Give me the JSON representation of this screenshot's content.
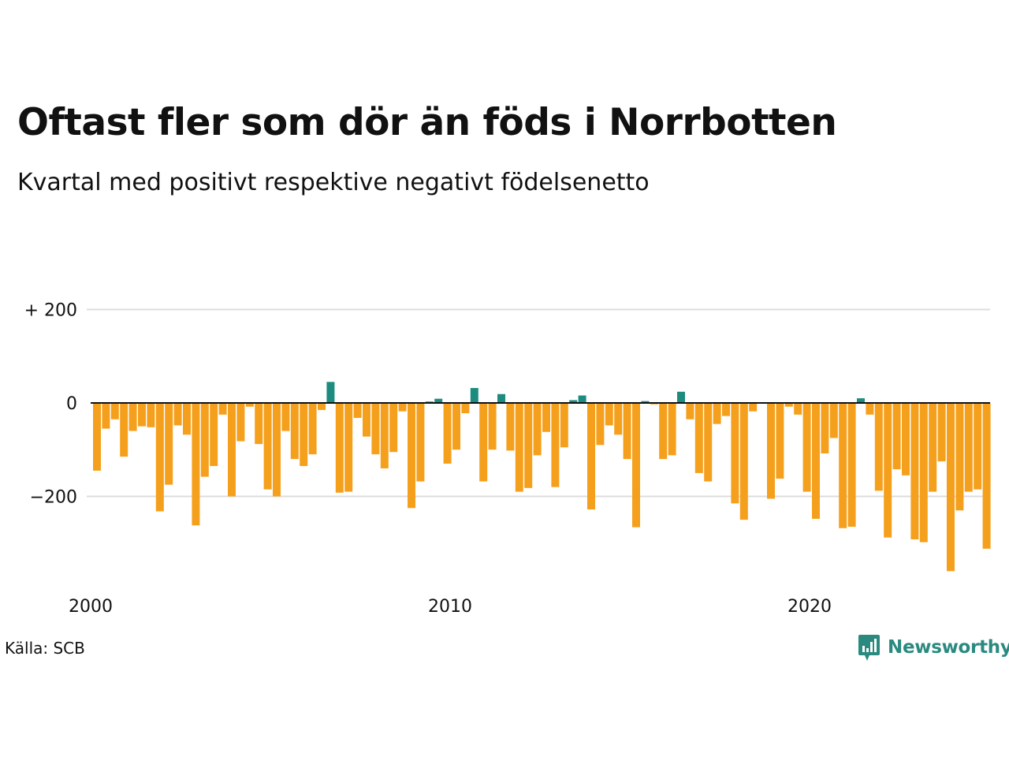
{
  "header": {
    "title": "Oftast fler som dör än föds i Norrbotten",
    "subtitle": "Kvartal med positivt respektive negativt födelsenetto"
  },
  "footer": {
    "source": "Källa: SCB",
    "brand": "Newsworthy"
  },
  "colors": {
    "negative": "#f5a01d",
    "positive": "#1d8c7f",
    "grid": "#dddddd",
    "zero_line": "#111111"
  },
  "chart_data": {
    "type": "bar",
    "x_start": "2000-Q1",
    "interval": "quarter",
    "y_ticks": [
      {
        "value": 200,
        "label": "+ 200"
      },
      {
        "value": 0,
        "label": "0"
      },
      {
        "value": -200,
        "label": "−200"
      }
    ],
    "x_ticks": [
      "2000",
      "2010",
      "2020"
    ],
    "ylim": [
      -380,
      200
    ],
    "values": [
      -145,
      -55,
      -35,
      -115,
      -60,
      -50,
      -52,
      -232,
      -175,
      -48,
      -68,
      -262,
      -158,
      -135,
      -25,
      -200,
      -82,
      -8,
      -88,
      -185,
      -200,
      -60,
      -120,
      -135,
      -110,
      -15,
      45,
      -192,
      -190,
      -32,
      -72,
      -110,
      -140,
      -105,
      -18,
      -225,
      -168,
      3,
      9,
      -130,
      -100,
      -22,
      32,
      -168,
      -100,
      19,
      -102,
      -190,
      -182,
      -112,
      -62,
      -180,
      -95,
      6,
      16,
      -228,
      -90,
      -48,
      -68,
      -120,
      -266,
      4,
      -3,
      -120,
      -112,
      24,
      -35,
      -150,
      -168,
      -45,
      -28,
      -215,
      -250,
      -18,
      0,
      -205,
      -162,
      -8,
      -25,
      -190,
      -248,
      -108,
      -75,
      -268,
      -265,
      10,
      -25,
      -188,
      -288,
      -142,
      -155,
      -292,
      -298,
      -190,
      -125,
      -360,
      -230,
      -190,
      -185,
      -312
    ]
  }
}
